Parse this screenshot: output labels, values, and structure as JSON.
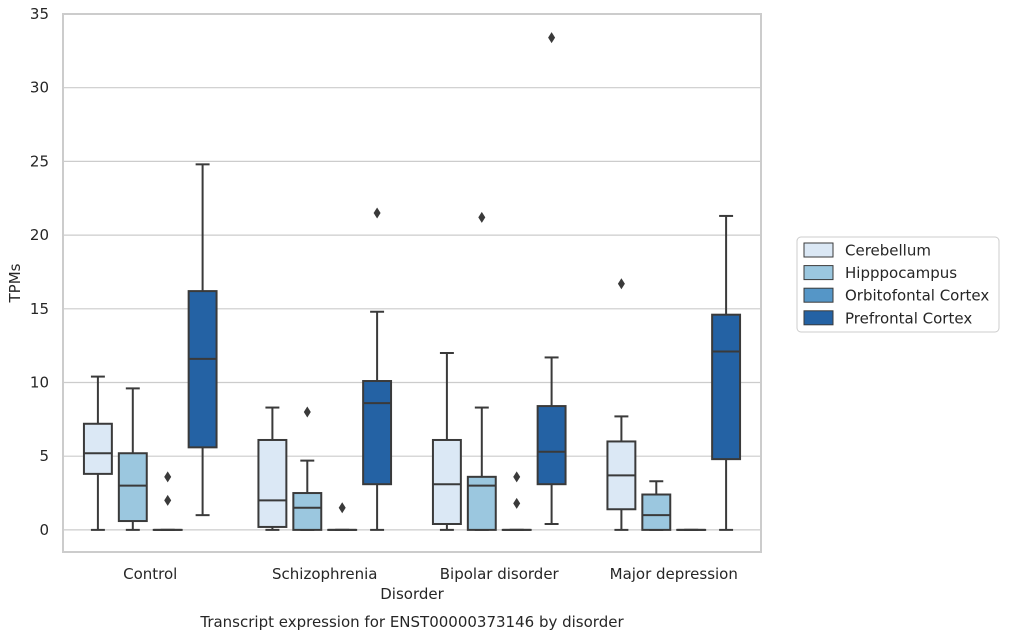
{
  "chart_data": {
    "type": "box",
    "title": "Transcript expression for ENST00000373146 by disorder",
    "xlabel": "Disorder",
    "ylabel": "TPMs",
    "ylim": [
      -1.5,
      35
    ],
    "yticks": [
      0,
      5,
      10,
      15,
      20,
      25,
      30,
      35
    ],
    "grid": true,
    "legend_position": "right",
    "categories": [
      "Control",
      "Schizophrenia",
      "Bipolar disorder",
      "Major depression"
    ],
    "series": [
      {
        "name": "Cerebellum",
        "color": "#dbe8f5",
        "boxes": [
          {
            "whislo": 0,
            "q1": 3.8,
            "med": 5.2,
            "q3": 7.2,
            "whishi": 10.4,
            "fliers": []
          },
          {
            "whislo": 0,
            "q1": 0.2,
            "med": 2.0,
            "q3": 6.1,
            "whishi": 8.3,
            "fliers": []
          },
          {
            "whislo": 0,
            "q1": 0.4,
            "med": 3.1,
            "q3": 6.1,
            "whishi": 12.0,
            "fliers": []
          },
          {
            "whislo": 0,
            "q1": 1.4,
            "med": 3.7,
            "q3": 6.0,
            "whishi": 7.7,
            "fliers": [
              16.7
            ]
          }
        ]
      },
      {
        "name": "Hipppocampus",
        "color": "#9bc7df",
        "boxes": [
          {
            "whislo": 0,
            "q1": 0.6,
            "med": 3.0,
            "q3": 5.2,
            "whishi": 9.6,
            "fliers": []
          },
          {
            "whislo": 0,
            "q1": 0,
            "med": 1.5,
            "q3": 2.5,
            "whishi": 4.7,
            "fliers": [
              8.0
            ]
          },
          {
            "whislo": 0,
            "q1": 0,
            "med": 3.0,
            "q3": 3.6,
            "whishi": 8.3,
            "fliers": [
              21.2
            ]
          },
          {
            "whislo": 0,
            "q1": 0,
            "med": 1.0,
            "q3": 2.4,
            "whishi": 3.3,
            "fliers": []
          }
        ]
      },
      {
        "name": "Orbitofontal Cortex",
        "color": "#5596c7",
        "boxes": [
          {
            "whislo": 0,
            "q1": 0,
            "med": 0,
            "q3": 0,
            "whishi": 0,
            "fliers": [
              2.0,
              3.6
            ]
          },
          {
            "whislo": 0,
            "q1": 0,
            "med": 0,
            "q3": 0,
            "whishi": 0,
            "fliers": [
              1.5
            ]
          },
          {
            "whislo": 0,
            "q1": 0,
            "med": 0,
            "q3": 0,
            "whishi": 0,
            "fliers": [
              1.8,
              3.6
            ]
          },
          {
            "whislo": 0,
            "q1": 0,
            "med": 0,
            "q3": 0,
            "whishi": 0,
            "fliers": []
          }
        ]
      },
      {
        "name": "Prefrontal Cortex",
        "color": "#2462a4",
        "boxes": [
          {
            "whislo": 1.0,
            "q1": 5.6,
            "med": 11.6,
            "q3": 16.2,
            "whishi": 24.8,
            "fliers": []
          },
          {
            "whislo": 0,
            "q1": 3.1,
            "med": 8.6,
            "q3": 10.1,
            "whishi": 14.8,
            "fliers": [
              21.5
            ]
          },
          {
            "whislo": 0.4,
            "q1": 3.1,
            "med": 5.3,
            "q3": 8.4,
            "whishi": 11.7,
            "fliers": [
              33.4
            ]
          },
          {
            "whislo": 0,
            "q1": 4.8,
            "med": 12.1,
            "q3": 14.6,
            "whishi": 21.3,
            "fliers": []
          }
        ]
      }
    ]
  }
}
